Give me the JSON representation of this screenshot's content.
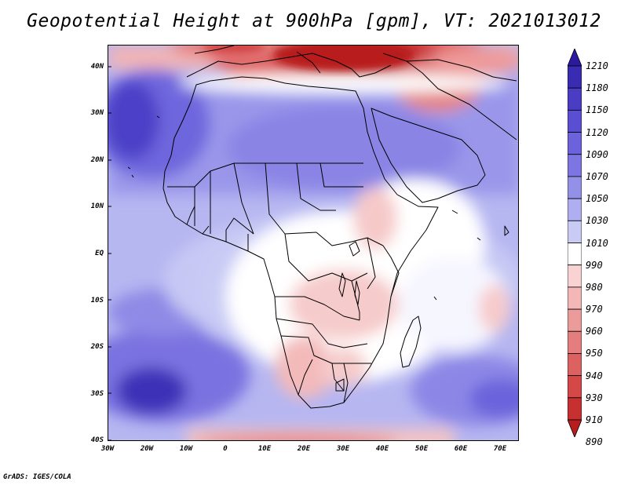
{
  "title": "Geopotential Height at 900hPa [gpm], VT: 2021013012",
  "credit": "GrADS: IGES/COLA",
  "map": {
    "variable": "Geopotential Height",
    "level": "900hPa",
    "units": "gpm",
    "valid_time": "2021013012",
    "lon_range": [
      -30,
      75
    ],
    "lat_range": [
      -40,
      45
    ],
    "lat_labels": [
      "40N",
      "30N",
      "20N",
      "10N",
      "EQ",
      "10S",
      "20S",
      "30S",
      "40S"
    ],
    "lon_labels": [
      "30W",
      "20W",
      "10W",
      "0",
      "10E",
      "20E",
      "30E",
      "40E",
      "50E",
      "60E",
      "70E"
    ]
  },
  "colorbar": {
    "labels": [
      "1210",
      "1180",
      "1150",
      "1120",
      "1090",
      "1070",
      "1050",
      "1030",
      "1010",
      "990",
      "980",
      "970",
      "960",
      "950",
      "940",
      "930",
      "910",
      "890"
    ],
    "colors": [
      "#2b1aa0",
      "#3a2bb3",
      "#4a3dc4",
      "#5a4fd2",
      "#6b62dc",
      "#7d76e2",
      "#9390e8",
      "#aeaef0",
      "#c9cbf5",
      "#ffffff",
      "#f9d2d2",
      "#f3b7b7",
      "#ec9b9b",
      "#e47e7e",
      "#dc6262",
      "#d44848",
      "#c73030",
      "#b81c1c"
    ]
  }
}
